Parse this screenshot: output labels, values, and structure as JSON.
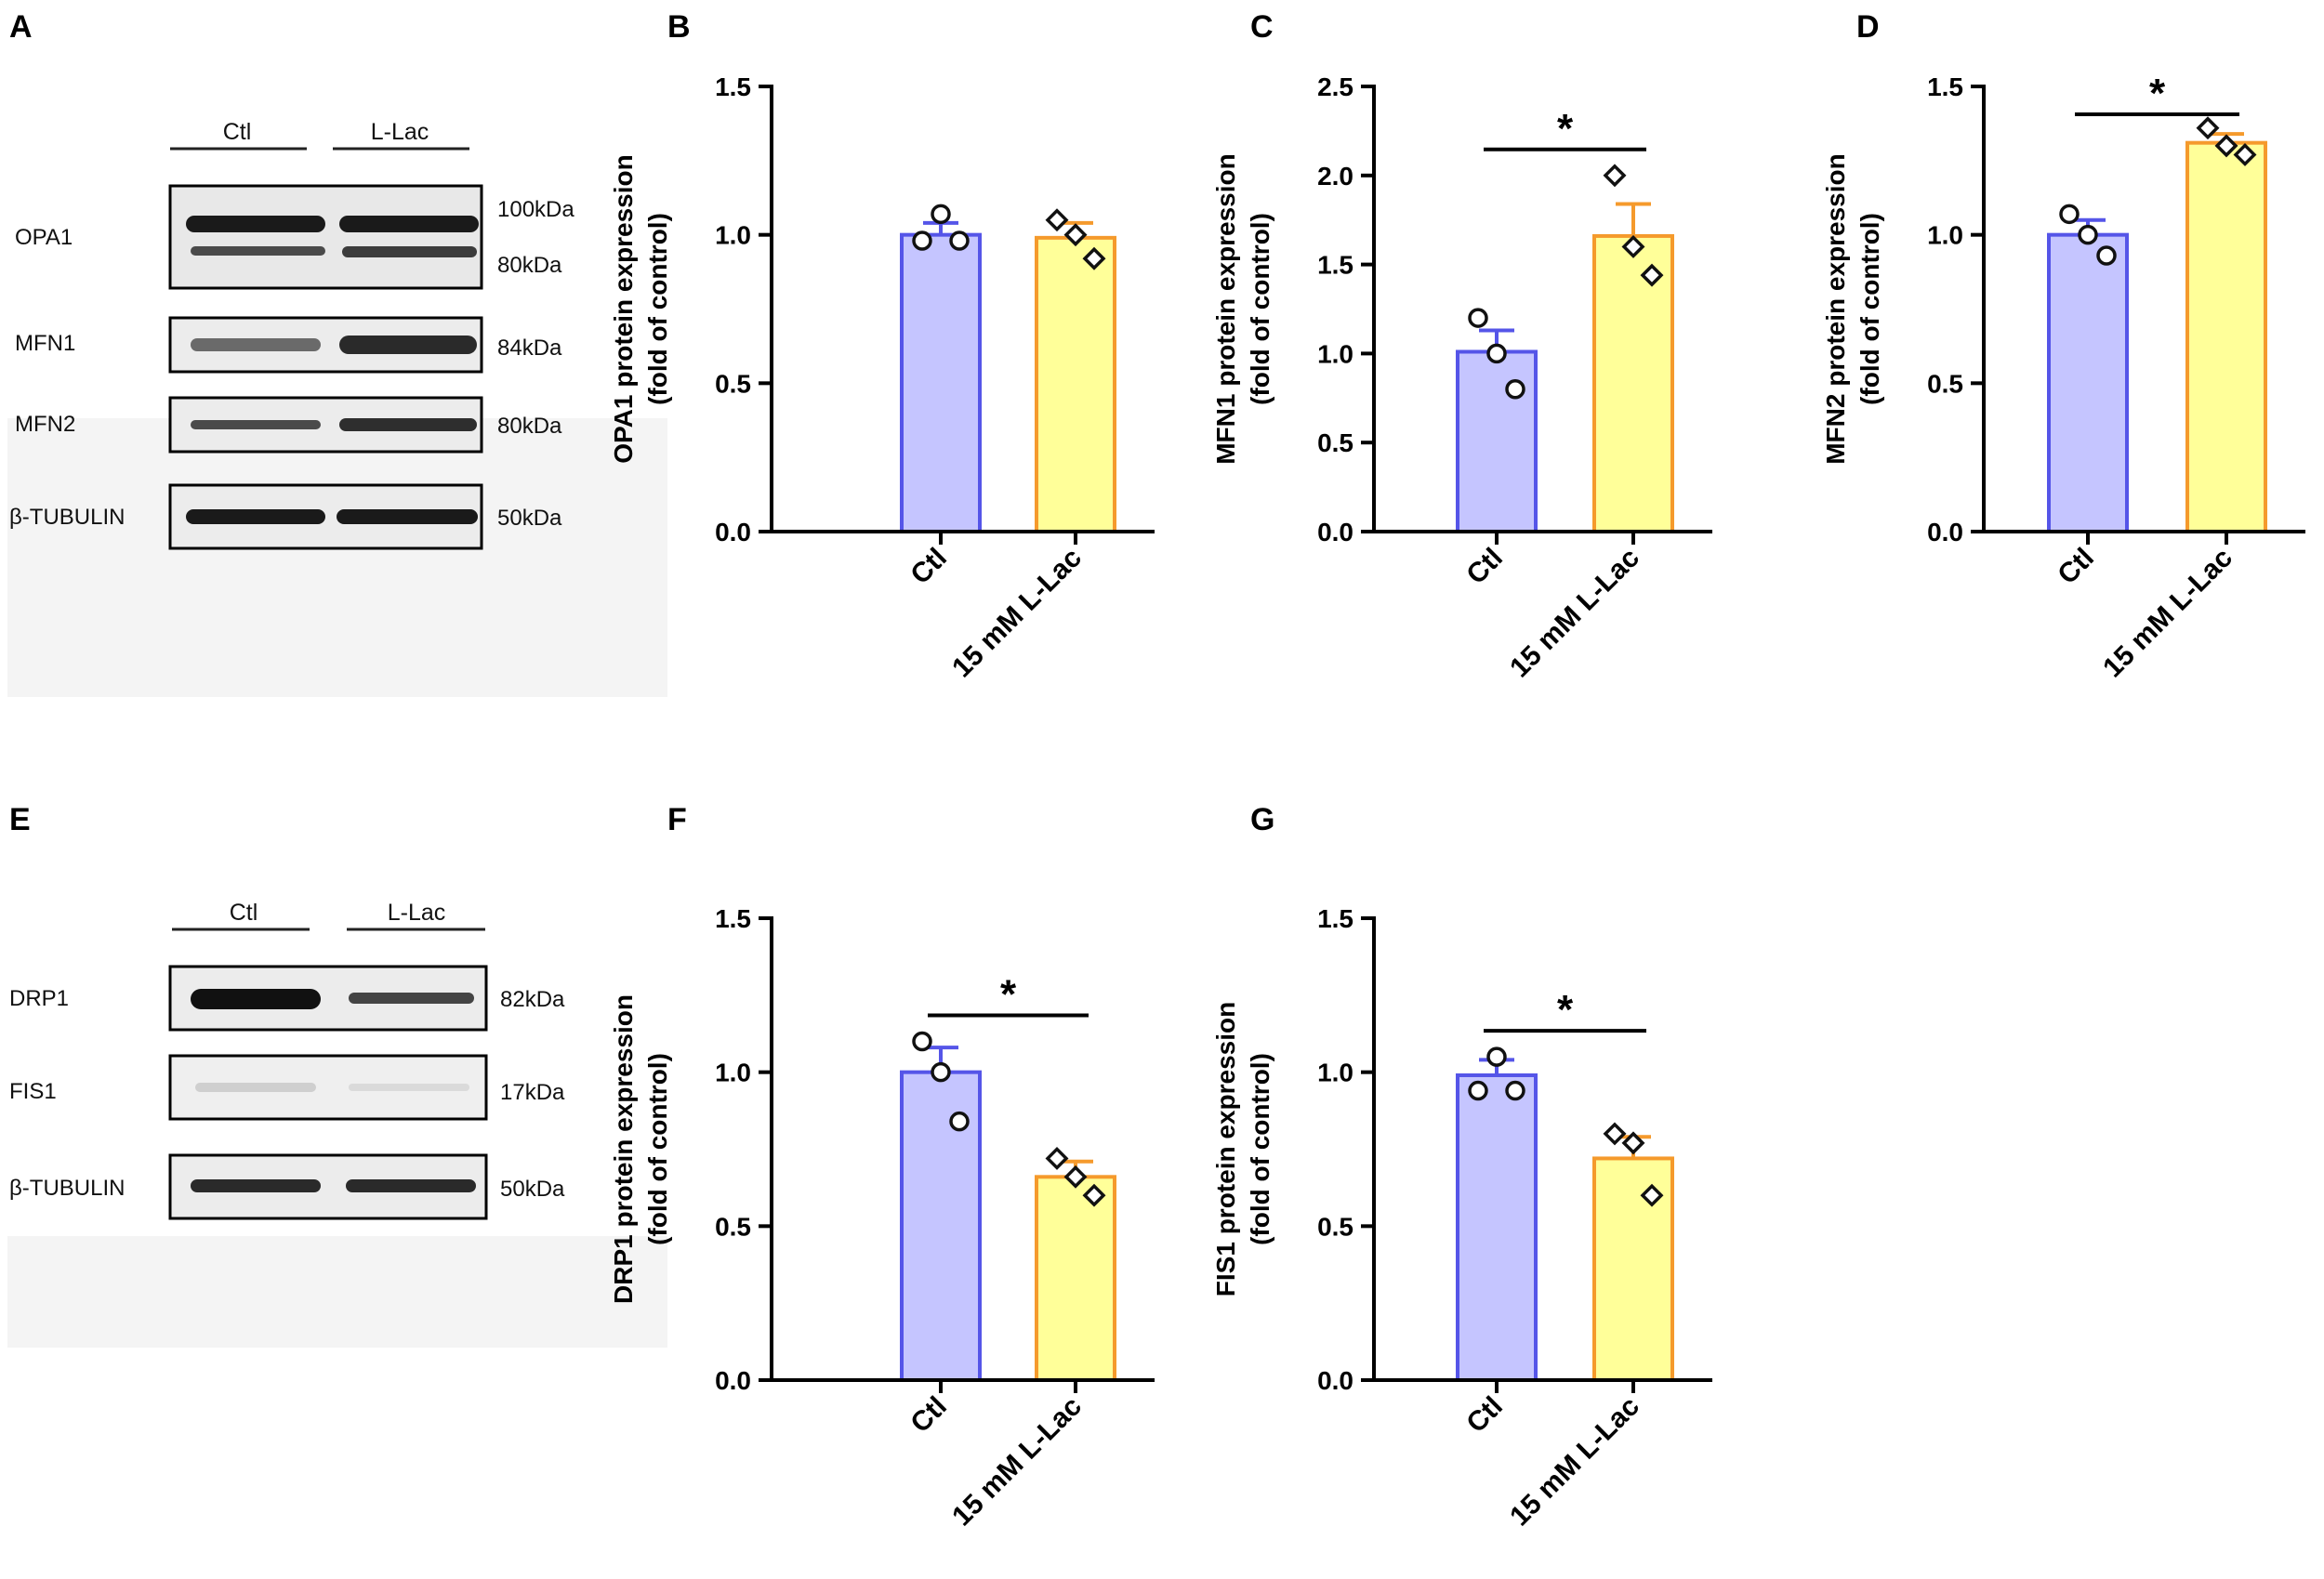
{
  "figure": {
    "bar_colors": {
      "ctl_fill": "#c5c5ff",
      "ctl_edge": "#5555e8",
      "llac_fill": "#ffff99",
      "llac_edge": "#f59a2c",
      "axis": "#000000"
    }
  },
  "blots": [
    {
      "panel": "A",
      "group_labels": [
        "Ctl",
        "L-Lac"
      ],
      "rows": [
        {
          "name": "OPA1",
          "markers": [
            "100kDa",
            "80kDa"
          ]
        },
        {
          "name": "MFN1",
          "markers": [
            "84kDa"
          ]
        },
        {
          "name": "MFN2",
          "markers": [
            "80kDa"
          ]
        },
        {
          "name": "β-TUBULIN",
          "markers": [
            "50kDa"
          ]
        }
      ]
    },
    {
      "panel": "E",
      "group_labels": [
        "Ctl",
        "L-Lac"
      ],
      "rows": [
        {
          "name": "DRP1",
          "markers": [
            "82kDa"
          ]
        },
        {
          "name": "FIS1",
          "markers": [
            "17kDa"
          ]
        },
        {
          "name": "β-TUBULIN",
          "markers": [
            "50kDa"
          ]
        }
      ]
    }
  ],
  "chart_data": [
    {
      "panel": "B",
      "type": "bar",
      "ylabel_lines": [
        "OPA1 protein expression",
        "(fold of control)"
      ],
      "categories": [
        "Ctl",
        "15 mM L-Lac"
      ],
      "values": [
        1.0,
        0.99
      ],
      "sem": [
        0.04,
        0.05
      ],
      "points": [
        [
          0.98,
          1.07,
          0.98
        ],
        [
          1.05,
          1.0,
          0.92
        ]
      ],
      "ylim": [
        0,
        1.5
      ],
      "yticks": [
        "0.0",
        "0.5",
        "1.0",
        "1.5"
      ],
      "significance": ""
    },
    {
      "panel": "C",
      "type": "bar",
      "ylabel_lines": [
        "MFN1 protein expression",
        "(fold of control)"
      ],
      "categories": [
        "Ctl",
        "15 mM L-Lac"
      ],
      "values": [
        1.01,
        1.66
      ],
      "sem": [
        0.12,
        0.18
      ],
      "points": [
        [
          1.2,
          1.0,
          0.8
        ],
        [
          2.0,
          1.6,
          1.44
        ]
      ],
      "ylim": [
        0,
        2.5
      ],
      "yticks": [
        "0.0",
        "0.5",
        "1.0",
        "1.5",
        "2.0",
        "2.5"
      ],
      "significance": "*"
    },
    {
      "panel": "D",
      "type": "bar",
      "ylabel_lines": [
        "MFN2 protein expression",
        "(fold of control)"
      ],
      "categories": [
        "Ctl",
        "15 mM L-Lac"
      ],
      "values": [
        1.0,
        1.31
      ],
      "sem": [
        0.05,
        0.03
      ],
      "points": [
        [
          1.07,
          1.0,
          0.93
        ],
        [
          1.36,
          1.3,
          1.27
        ]
      ],
      "ylim": [
        0,
        1.5
      ],
      "yticks": [
        "0.0",
        "0.5",
        "1.0",
        "1.5"
      ],
      "significance": "*"
    },
    {
      "panel": "F",
      "type": "bar",
      "ylabel_lines": [
        "DRP1 protein expression",
        "(fold of control)"
      ],
      "categories": [
        "Ctl",
        "15 mM L-Lac"
      ],
      "values": [
        1.0,
        0.66
      ],
      "sem": [
        0.08,
        0.05
      ],
      "points": [
        [
          1.1,
          1.0,
          0.84
        ],
        [
          0.72,
          0.66,
          0.6
        ]
      ],
      "ylim": [
        0,
        1.5
      ],
      "yticks": [
        "0.0",
        "0.5",
        "1.0",
        "1.5"
      ],
      "significance": "*"
    },
    {
      "panel": "G",
      "type": "bar",
      "ylabel_lines": [
        "FIS1 protein expression",
        "(fold of control)"
      ],
      "categories": [
        "Ctl",
        "15 mM L-Lac"
      ],
      "values": [
        0.99,
        0.72
      ],
      "sem": [
        0.05,
        0.07
      ],
      "points": [
        [
          0.94,
          1.05,
          0.94
        ],
        [
          0.8,
          0.77,
          0.6
        ]
      ],
      "ylim": [
        0,
        1.5
      ],
      "yticks": [
        "0.0",
        "0.5",
        "1.0",
        "1.5"
      ],
      "significance": "*"
    }
  ]
}
